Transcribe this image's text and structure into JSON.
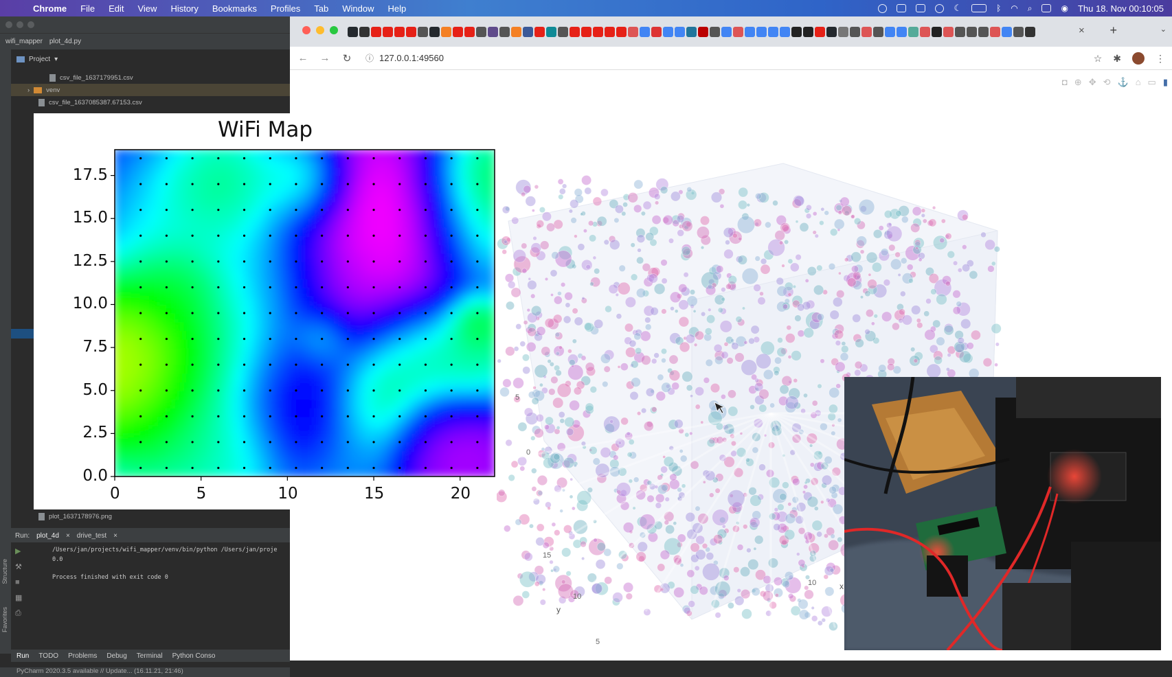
{
  "menubar": {
    "app": "Chrome",
    "items": [
      "File",
      "Edit",
      "View",
      "History",
      "Bookmarks",
      "Profiles",
      "Tab",
      "Window",
      "Help"
    ],
    "clock": "Thu 18. Nov  00:10:05"
  },
  "pycharm": {
    "project_name": "wifi_mapper",
    "open_file": "plot_4d.py",
    "project_label": "Project",
    "tree": [
      {
        "name": "csv_file_1637179951.csv",
        "type": "file"
      },
      {
        "name": "venv",
        "type": "folder"
      },
      {
        "name": "csv_file_1637085387.67153.csv",
        "type": "file"
      },
      {
        "name": "plot_1637178976.png",
        "type": "file"
      }
    ],
    "run_label": "Run:",
    "run_tabs": [
      "plot_4d",
      "drive_test"
    ],
    "console_lines": [
      "/Users/jan/projects/wifi_mapper/venv/bin/python /Users/jan/proje",
      "0.0",
      "",
      "Process finished with exit code 0"
    ],
    "bottom_tabs": [
      "Run",
      "TODO",
      "Problems",
      "Debug",
      "Terminal",
      "Python Conso"
    ],
    "status": "PyCharm 2020.3.5 available // Update... (16.11.21, 21:46)",
    "side_labels": [
      "Structure",
      "Favorites"
    ]
  },
  "chrome": {
    "url": "127.0.0.1:49560",
    "accent": "#446ea8"
  },
  "plot3d": {
    "axis_labels": {
      "x": "x",
      "y": "y"
    },
    "y_ticks": [
      "15",
      "10",
      "5"
    ],
    "x_ticks": [
      "10"
    ],
    "z_ticks": [
      "5",
      "0"
    ]
  },
  "chart_data": {
    "type": "heatmap",
    "title": "WiFi Map",
    "xlabel": "",
    "ylabel": "",
    "xlim": [
      0,
      22
    ],
    "ylim": [
      0,
      19
    ],
    "x_ticks": [
      "0",
      "5",
      "10",
      "15",
      "20"
    ],
    "y_ticks": [
      "0.0",
      "2.5",
      "5.0",
      "7.5",
      "10.0",
      "12.5",
      "15.0",
      "17.5"
    ],
    "colormap": "gist_rainbow",
    "sample_grid_spacing": 1.5
  }
}
